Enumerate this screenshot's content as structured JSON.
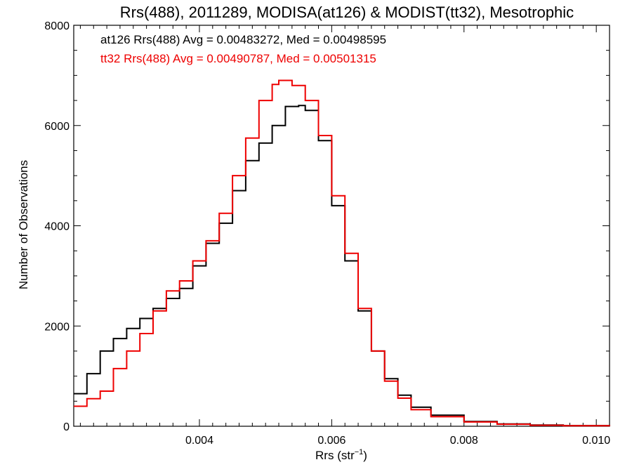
{
  "chart_data": {
    "type": "line",
    "title": "Rrs(488), 2011289, MODISA(at126) & MODIST(tt32), Mesotrophic",
    "xlabel_main": "Rrs (str",
    "xlabel_sup": "−1",
    "xlabel_end": ")",
    "ylabel": "Number of Observations",
    "xlim": [
      0.0021,
      0.0102
    ],
    "ylim": [
      0,
      8000
    ],
    "x_ticks": [
      0.004,
      0.006,
      0.008,
      0.01
    ],
    "x_tick_labels": [
      "0.004",
      "0.006",
      "0.008",
      "0.010"
    ],
    "y_ticks": [
      0,
      2000,
      4000,
      6000,
      8000
    ],
    "y_tick_labels": [
      "0",
      "2000",
      "4000",
      "6000",
      "8000"
    ],
    "series": [
      {
        "legend": "at126 Rrs(488) Avg = 0.00483272, Med = 0.00498595",
        "color": "#000000",
        "points": [
          [
            0.0021,
            650
          ],
          [
            0.0023,
            1050
          ],
          [
            0.0025,
            1500
          ],
          [
            0.0027,
            1750
          ],
          [
            0.0029,
            1950
          ],
          [
            0.0031,
            2150
          ],
          [
            0.0033,
            2350
          ],
          [
            0.0035,
            2550
          ],
          [
            0.0037,
            2750
          ],
          [
            0.0039,
            3200
          ],
          [
            0.0041,
            3650
          ],
          [
            0.0043,
            4050
          ],
          [
            0.0045,
            4700
          ],
          [
            0.0047,
            5300
          ],
          [
            0.0049,
            5650
          ],
          [
            0.0051,
            6000
          ],
          [
            0.0053,
            6380
          ],
          [
            0.0055,
            6400
          ],
          [
            0.0056,
            6300
          ],
          [
            0.0058,
            5700
          ],
          [
            0.006,
            4400
          ],
          [
            0.0062,
            3300
          ],
          [
            0.0064,
            2300
          ],
          [
            0.0066,
            1500
          ],
          [
            0.0068,
            950
          ],
          [
            0.007,
            620
          ],
          [
            0.0072,
            380
          ],
          [
            0.0075,
            220
          ],
          [
            0.008,
            95
          ],
          [
            0.0085,
            45
          ],
          [
            0.009,
            25
          ],
          [
            0.0095,
            12
          ],
          [
            0.0102,
            6
          ]
        ]
      },
      {
        "legend": "tt32 Rrs(488) Avg = 0.00490787, Med = 0.00501315",
        "color": "#ee0000",
        "points": [
          [
            0.0021,
            400
          ],
          [
            0.0023,
            550
          ],
          [
            0.0025,
            700
          ],
          [
            0.0027,
            1150
          ],
          [
            0.0029,
            1500
          ],
          [
            0.0031,
            1850
          ],
          [
            0.0033,
            2300
          ],
          [
            0.0035,
            2700
          ],
          [
            0.0037,
            2900
          ],
          [
            0.0039,
            3300
          ],
          [
            0.0041,
            3700
          ],
          [
            0.0043,
            4250
          ],
          [
            0.0045,
            5000
          ],
          [
            0.0047,
            5750
          ],
          [
            0.0049,
            6500
          ],
          [
            0.0051,
            6820
          ],
          [
            0.0052,
            6900
          ],
          [
            0.0054,
            6800
          ],
          [
            0.0056,
            6500
          ],
          [
            0.0058,
            5800
          ],
          [
            0.006,
            4600
          ],
          [
            0.0062,
            3450
          ],
          [
            0.0064,
            2350
          ],
          [
            0.0066,
            1500
          ],
          [
            0.0068,
            900
          ],
          [
            0.007,
            560
          ],
          [
            0.0072,
            330
          ],
          [
            0.0075,
            190
          ],
          [
            0.008,
            85
          ],
          [
            0.0085,
            40
          ],
          [
            0.009,
            20
          ],
          [
            0.0095,
            10
          ],
          [
            0.0102,
            5
          ]
        ]
      }
    ]
  }
}
